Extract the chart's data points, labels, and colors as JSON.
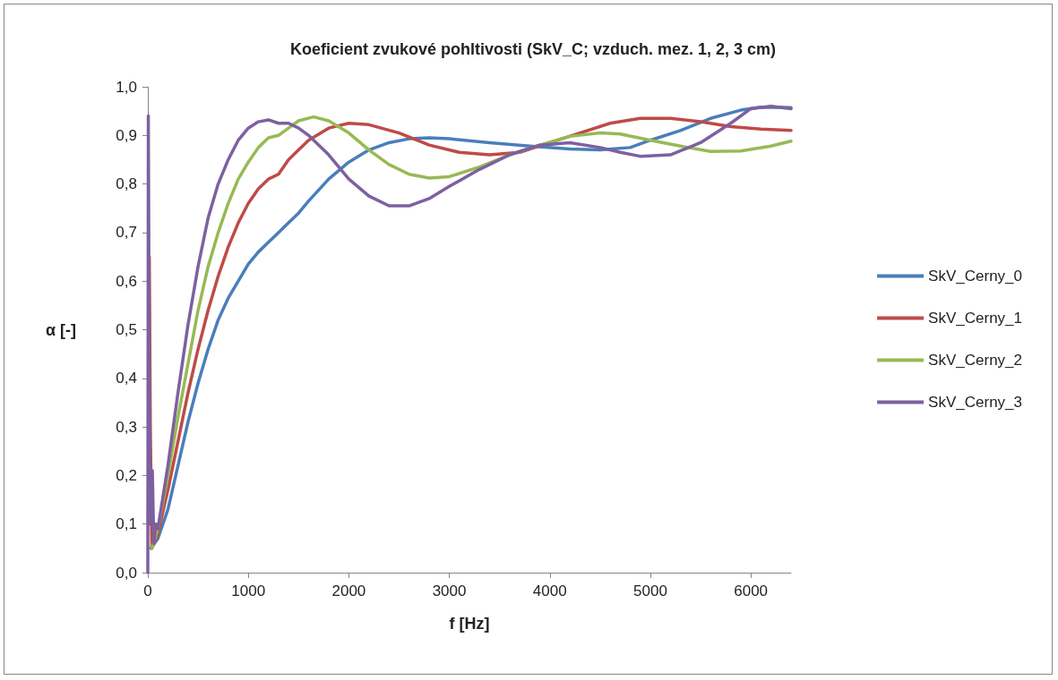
{
  "chart_data": {
    "type": "line",
    "title": "Koeficient zvukové pohltivosti (SkV_C; vzduch. mez. 1, 2, 3 cm)",
    "xlabel": "f [Hz]",
    "ylabel": "α [-]",
    "xlim": [
      0,
      6400
    ],
    "xticks": [
      0,
      1000,
      2000,
      3000,
      4000,
      5000,
      6000
    ],
    "ylim": [
      0,
      1
    ],
    "yticks": [
      {
        "value": 0,
        "label": "0,0"
      },
      {
        "value": 0.1,
        "label": "0,1"
      },
      {
        "value": 0.2,
        "label": "0,2"
      },
      {
        "value": 0.3,
        "label": "0,3"
      },
      {
        "value": 0.4,
        "label": "0,4"
      },
      {
        "value": 0.5,
        "label": "0,5"
      },
      {
        "value": 0.6,
        "label": "0,6"
      },
      {
        "value": 0.7,
        "label": "0,7"
      },
      {
        "value": 0.8,
        "label": "0,8"
      },
      {
        "value": 0.9,
        "label": "0,9"
      },
      {
        "value": 1,
        "label": "1,0"
      }
    ],
    "grid": false,
    "legend": "right",
    "marker": "none",
    "line_style": "solid",
    "series": [
      {
        "name": "SkV_Cerny_0",
        "color": "#4a7ebb",
        "x": [
          30,
          100,
          200,
          300,
          400,
          500,
          600,
          700,
          800,
          900,
          1000,
          1100,
          1200,
          1300,
          1400,
          1500,
          1600,
          1800,
          2000,
          2200,
          2400,
          2600,
          2800,
          3000,
          3400,
          3800,
          4200,
          4500,
          4800,
          5000,
          5300,
          5600,
          5900,
          6100,
          6400
        ],
        "values": [
          0.05,
          0.07,
          0.13,
          0.22,
          0.31,
          0.39,
          0.46,
          0.52,
          0.565,
          0.6,
          0.635,
          0.66,
          0.68,
          0.7,
          0.72,
          0.74,
          0.765,
          0.81,
          0.845,
          0.87,
          0.885,
          0.893,
          0.895,
          0.893,
          0.885,
          0.878,
          0.872,
          0.87,
          0.875,
          0.89,
          0.91,
          0.935,
          0.952,
          0.958,
          0.957
        ]
      },
      {
        "name": "SkV_Cerny_1",
        "color": "#be4b48",
        "x": [
          5,
          15,
          25,
          40,
          100,
          200,
          300,
          400,
          500,
          600,
          700,
          800,
          900,
          1000,
          1100,
          1200,
          1300,
          1400,
          1500,
          1600,
          1800,
          2000,
          2200,
          2500,
          2800,
          3100,
          3400,
          3700,
          4000,
          4300,
          4600,
          4900,
          5200,
          5500,
          5800,
          6100,
          6400
        ],
        "values": [
          0.1,
          0.65,
          0.3,
          0.05,
          0.08,
          0.17,
          0.27,
          0.37,
          0.46,
          0.54,
          0.61,
          0.67,
          0.72,
          0.76,
          0.79,
          0.81,
          0.82,
          0.85,
          0.87,
          0.89,
          0.915,
          0.925,
          0.922,
          0.905,
          0.88,
          0.865,
          0.86,
          0.865,
          0.885,
          0.905,
          0.925,
          0.935,
          0.935,
          0.928,
          0.918,
          0.913,
          0.91
        ]
      },
      {
        "name": "SkV_Cerny_2",
        "color": "#98b954",
        "x": [
          40,
          100,
          200,
          300,
          400,
          500,
          600,
          700,
          800,
          900,
          1000,
          1100,
          1200,
          1300,
          1400,
          1500,
          1650,
          1800,
          2000,
          2200,
          2400,
          2600,
          2800,
          3000,
          3300,
          3600,
          3900,
          4200,
          4500,
          4700,
          5000,
          5300,
          5600,
          5900,
          6200,
          6400
        ],
        "values": [
          0.05,
          0.09,
          0.2,
          0.32,
          0.43,
          0.54,
          0.63,
          0.7,
          0.76,
          0.81,
          0.845,
          0.875,
          0.895,
          0.9,
          0.915,
          0.93,
          0.938,
          0.93,
          0.905,
          0.87,
          0.84,
          0.82,
          0.812,
          0.815,
          0.835,
          0.86,
          0.88,
          0.898,
          0.905,
          0.903,
          0.89,
          0.878,
          0.867,
          0.868,
          0.878,
          0.888
        ]
      },
      {
        "name": "SkV_Cerny_3",
        "color": "#7d60a0",
        "x": [
          0,
          5,
          15,
          25,
          45,
          60,
          80,
          100,
          200,
          300,
          400,
          500,
          600,
          700,
          800,
          900,
          1000,
          1100,
          1200,
          1300,
          1400,
          1500,
          1600,
          1800,
          2000,
          2200,
          2400,
          2600,
          2800,
          3000,
          3300,
          3600,
          3900,
          4200,
          4500,
          4700,
          4900,
          5200,
          5500,
          5800,
          6000,
          6200,
          6400
        ],
        "values": [
          0.0,
          0.94,
          0.4,
          0.1,
          0.21,
          0.06,
          0.1,
          0.09,
          0.22,
          0.37,
          0.51,
          0.63,
          0.73,
          0.8,
          0.85,
          0.89,
          0.915,
          0.928,
          0.932,
          0.925,
          0.925,
          0.915,
          0.9,
          0.86,
          0.81,
          0.775,
          0.755,
          0.755,
          0.77,
          0.795,
          0.83,
          0.86,
          0.88,
          0.885,
          0.875,
          0.865,
          0.857,
          0.86,
          0.885,
          0.925,
          0.955,
          0.96,
          0.955
        ]
      }
    ]
  }
}
